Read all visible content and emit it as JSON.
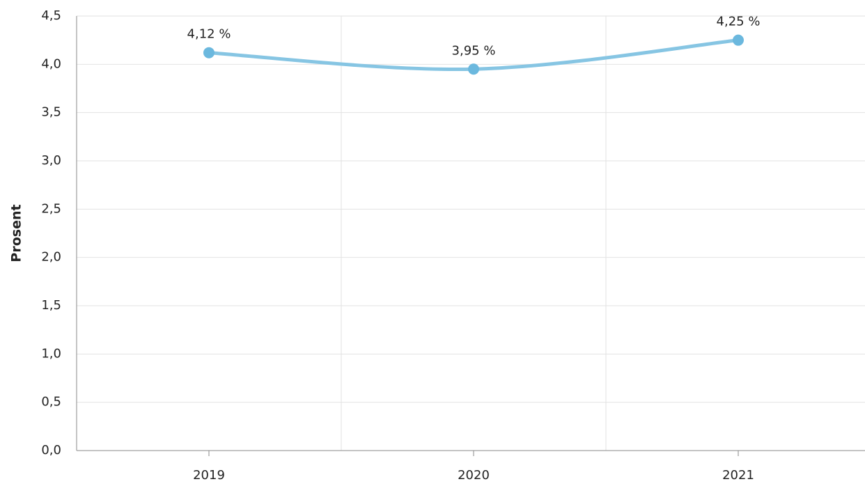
{
  "chart_data": {
    "type": "line",
    "y_label": "Prosent",
    "categories": [
      "2019",
      "2020",
      "2021"
    ],
    "series": [
      {
        "name": "Prosent",
        "color": "#6bb8de",
        "line_color": "#86c5e3",
        "values": [
          4.12,
          3.95,
          4.25
        ],
        "value_labels": [
          "4,12 %",
          "3,95 %",
          "4,25 %"
        ]
      }
    ],
    "ylim": [
      0,
      4.5
    ],
    "yticks": [
      {
        "value": 0,
        "label": "0,0"
      },
      {
        "value": 0.5,
        "label": "0,5"
      },
      {
        "value": 1,
        "label": "1,0"
      },
      {
        "value": 1.5,
        "label": "1,5"
      },
      {
        "value": 2,
        "label": "2,0"
      },
      {
        "value": 2.5,
        "label": "2,5"
      },
      {
        "value": 3,
        "label": "3,0"
      },
      {
        "value": 3.5,
        "label": "3,5"
      },
      {
        "value": 4,
        "label": "4,0"
      },
      {
        "value": 4.5,
        "label": "4,5"
      }
    ],
    "grid": true
  }
}
